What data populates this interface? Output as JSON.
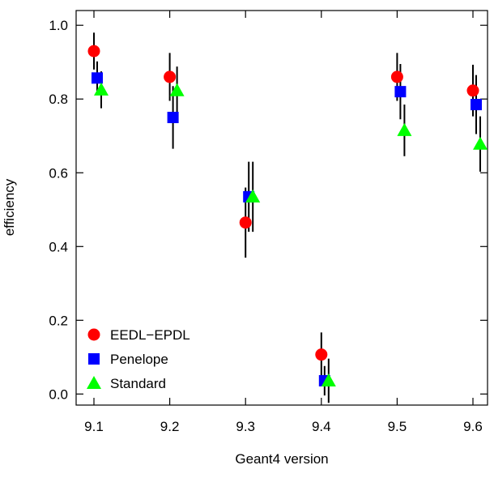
{
  "chart_data": {
    "type": "scatter",
    "title": "",
    "xlabel": "Geant4 version",
    "ylabel": "efficiency",
    "categories": [
      "9.1",
      "9.2",
      "9.3",
      "9.4",
      "9.5",
      "9.6"
    ],
    "ylim": [
      -0.03,
      1.04
    ],
    "yticks": [
      "0.0",
      "0.2",
      "0.4",
      "0.6",
      "0.8",
      "1.0"
    ],
    "grid": false,
    "legend_position": "bottom-left",
    "series": [
      {
        "name": "EEDL−EPDL",
        "marker": "circle",
        "color": "#ff0000",
        "values": [
          0.93,
          0.86,
          0.465,
          0.107,
          0.86,
          0.823
        ],
        "errors": [
          0.05,
          0.065,
          0.095,
          0.06,
          0.065,
          0.07
        ]
      },
      {
        "name": "Penelope",
        "marker": "square",
        "color": "#0000ff",
        "values": [
          0.857,
          0.75,
          0.535,
          0.036,
          0.82,
          0.785
        ],
        "errors": [
          0.045,
          0.085,
          0.095,
          0.04,
          0.075,
          0.08
        ]
      },
      {
        "name": "Standard",
        "marker": "triangle",
        "color": "#00ff00",
        "values": [
          0.825,
          0.823,
          0.535,
          0.036,
          0.715,
          0.678
        ],
        "errors": [
          0.05,
          0.065,
          0.095,
          0.06,
          0.07,
          0.075
        ]
      }
    ]
  }
}
